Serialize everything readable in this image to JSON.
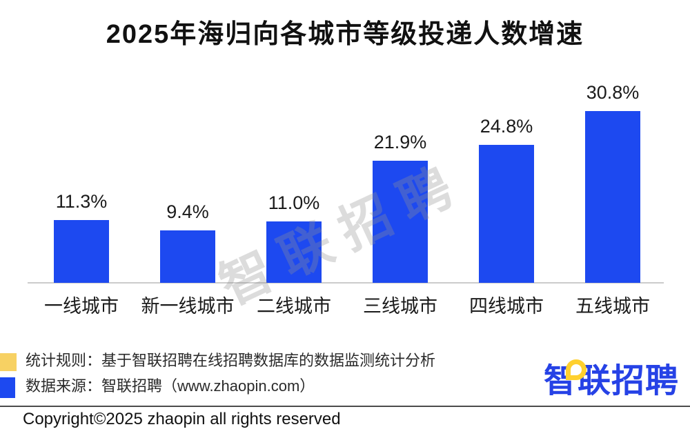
{
  "title": "2025年海归向各城市等级投递人数增速",
  "watermark": "智联招聘",
  "chart_data": {
    "type": "bar",
    "title": "2025年海归向各城市等级投递人数增速",
    "categories": [
      "一线城市",
      "新一线城市",
      "二线城市",
      "三线城市",
      "四线城市",
      "五线城市"
    ],
    "values": [
      11.3,
      9.4,
      11.0,
      21.9,
      24.8,
      30.8
    ],
    "value_labels": [
      "11.3%",
      "9.4%",
      "11.0%",
      "21.9%",
      "24.8%",
      "30.8%"
    ],
    "xlabel": "",
    "ylabel": "",
    "ylim": [
      0,
      35
    ],
    "grid": false,
    "legend_position": "none",
    "bar_color": "#1d49f0"
  },
  "footer": {
    "notes": [
      {
        "swatch_color": "#f7d163",
        "text": "统计规则：基于智联招聘在线招聘数据库的数据监测统计分析"
      },
      {
        "swatch_color": "#1d49f0",
        "text": "数据来源：智联招聘（www.zhaopin.com）"
      }
    ],
    "logo_text": "智联招聘",
    "copyright": "Copyright©2025 zhaopin all rights reserved"
  },
  "colors": {
    "bar_blue": "#1d49f0",
    "note_yellow": "#f7d163",
    "logo_blue": "#2642e6",
    "logo_pin_yellow": "#ffd02e",
    "baseline_gray": "#cbcbcb",
    "divider_gray": "#4a4a4a"
  }
}
